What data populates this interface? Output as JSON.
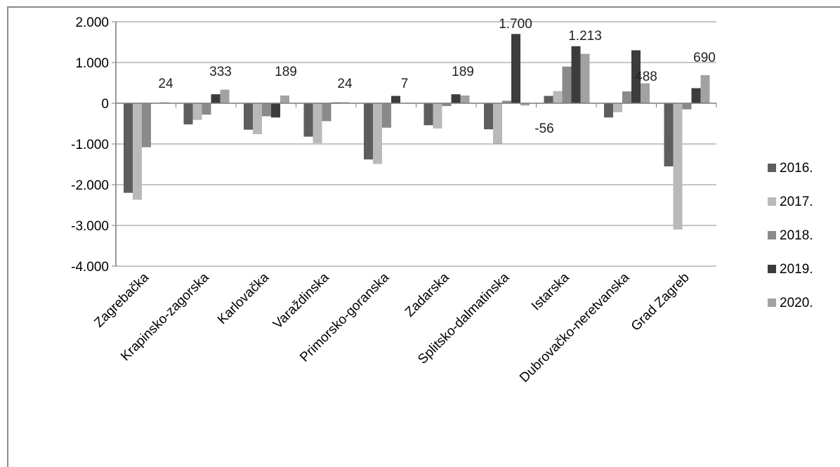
{
  "chart_data": {
    "type": "bar",
    "title": "",
    "xlabel": "",
    "ylabel": "",
    "ylim": [
      -4000,
      2000
    ],
    "yticks": [
      2000,
      1000,
      0,
      -1000,
      -2000,
      -3000,
      -4000
    ],
    "ytick_labels": [
      "2.000",
      "1.000",
      "0",
      "-1.000",
      "-2.000",
      "-3.000",
      "-4.000"
    ],
    "grid": true,
    "legend_position": "right",
    "categories": [
      "Zagrebačka",
      "Krapinsko-zagorska",
      "Karlovačka",
      "Varaždinska",
      "Primorsko-goranska",
      "Zadarska",
      "Splitsko-dalmatinska",
      "Istarska",
      "Dubrovačko-neretvanska",
      "Grad Zagreb"
    ],
    "series": [
      {
        "name": "2016.",
        "color": "#5e5e5e",
        "values": [
          -2200,
          -520,
          -650,
          -820,
          -1380,
          -540,
          -640,
          180,
          -350,
          -1550
        ]
      },
      {
        "name": "2017.",
        "color": "#b9b9b9",
        "values": [
          -2370,
          -410,
          -760,
          -980,
          -1490,
          -620,
          -990,
          300,
          -220,
          -3100
        ]
      },
      {
        "name": "2018.",
        "color": "#8a8a8a",
        "values": [
          -1080,
          -280,
          -320,
          -440,
          -600,
          -70,
          60,
          900,
          290,
          -150
        ]
      },
      {
        "name": "2019.",
        "color": "#3c3c3c",
        "values": [
          10,
          220,
          -350,
          20,
          180,
          220,
          1700,
          1400,
          1300,
          370
        ]
      },
      {
        "name": "2020.",
        "color": "#a2a2a2",
        "values": [
          24,
          333,
          189,
          24,
          7,
          189,
          -56,
          1213,
          488,
          690
        ]
      }
    ],
    "data_labels": [
      {
        "category_index": 0,
        "text": "24"
      },
      {
        "category_index": 1,
        "text": "333"
      },
      {
        "category_index": 2,
        "text": "189"
      },
      {
        "category_index": 3,
        "text": "24"
      },
      {
        "category_index": 4,
        "text": "7"
      },
      {
        "category_index": 5,
        "text": "189"
      },
      {
        "category_index": 6,
        "text": "1.700"
      },
      {
        "category_index": 6,
        "text": "-56"
      },
      {
        "category_index": 7,
        "text": "1.213"
      },
      {
        "category_index": 8,
        "text": "488"
      },
      {
        "category_index": 9,
        "text": "690"
      }
    ]
  }
}
